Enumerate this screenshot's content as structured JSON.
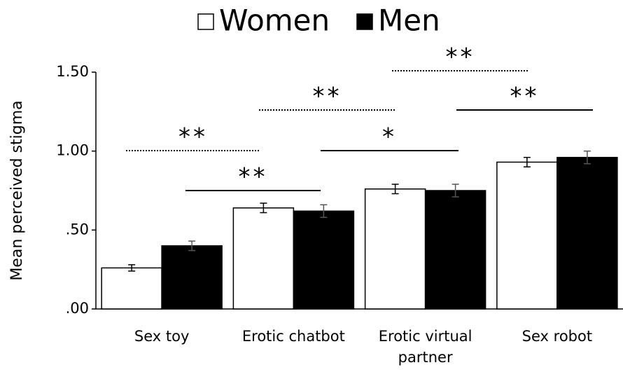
{
  "chart_data": {
    "type": "bar",
    "categories": [
      "Sex toy",
      "Erotic chatbot",
      "Erotic virtual partner",
      "Sex robot"
    ],
    "series": [
      {
        "name": "Women",
        "color": "#ffffff",
        "values": [
          0.26,
          0.64,
          0.76,
          0.93
        ],
        "errors": [
          0.02,
          0.03,
          0.03,
          0.03
        ]
      },
      {
        "name": "Men",
        "color": "#000000",
        "values": [
          0.4,
          0.62,
          0.75,
          0.96
        ],
        "errors": [
          0.03,
          0.04,
          0.04,
          0.04
        ]
      }
    ],
    "y_label": "Mean perceived stigma",
    "ylim": [
      0,
      1.5
    ],
    "yticks": [
      {
        "value": 0,
        "label": ".00"
      },
      {
        "value": 0.5,
        "label": ".50"
      },
      {
        "value": 1,
        "label": "1.00"
      },
      {
        "value": 1.5,
        "label": "1.50"
      }
    ],
    "annotations": [
      "**",
      "**",
      "**",
      "*",
      "**",
      "**"
    ]
  }
}
